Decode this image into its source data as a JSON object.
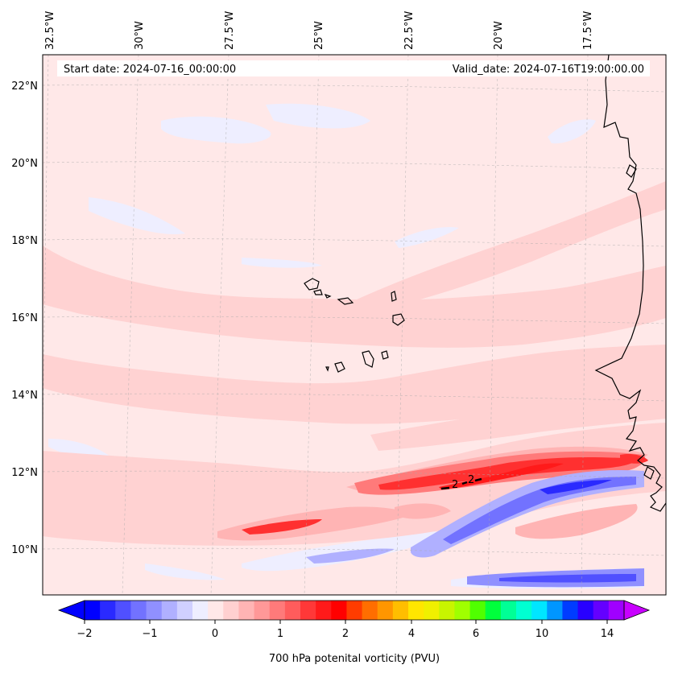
{
  "map": {
    "start_date": "Start date: 2024-07-16_00:00:00",
    "valid_date": "Valid_date: 2024-07-16T19:00:00.00",
    "lon_labels": [
      "32.5°W",
      "30°W",
      "27.5°W",
      "25°W",
      "22.5°W",
      "20°W",
      "17.5°W"
    ],
    "lat_labels": [
      "22°N",
      "20°N",
      "18°N",
      "16°N",
      "14°N",
      "12°N",
      "10°N"
    ],
    "contour_label": "2"
  },
  "colorbar": {
    "label": "700 hPa potenital vorticity (PVU)",
    "tick_labels": [
      "−2",
      "−1",
      "0",
      "1",
      "2",
      "4",
      "6",
      "10",
      "14"
    ],
    "colors": [
      "#0000ff",
      "#2a2aff",
      "#5050ff",
      "#7272ff",
      "#9090ff",
      "#b0b0ff",
      "#d0d0ff",
      "#eeeeff",
      "#ffe8e8",
      "#ffd0d0",
      "#ffb4b4",
      "#ff9898",
      "#ff7a7a",
      "#ff5c5c",
      "#ff3838",
      "#ff1a1a",
      "#ff0000",
      "#ff3c00",
      "#ff6e00",
      "#ff9600",
      "#ffbe00",
      "#ffe600",
      "#f0f000",
      "#c8f500",
      "#a0ff00",
      "#50ff00",
      "#00ff3c",
      "#00ff96",
      "#00ffd2",
      "#00e6ff",
      "#0096ff",
      "#003cff",
      "#2800ff",
      "#6400ff",
      "#a000ff"
    ],
    "under_color": "#0000ff",
    "over_color": "#c800ff"
  },
  "colors": {
    "background": "#ffe8e8",
    "light_pink": "#ffd2d2",
    "pink": "#ffb4b4",
    "red": "#ff3030",
    "light_blue": "#eeeeff",
    "blue": "#8080ff",
    "deep_blue": "#2020ff"
  }
}
